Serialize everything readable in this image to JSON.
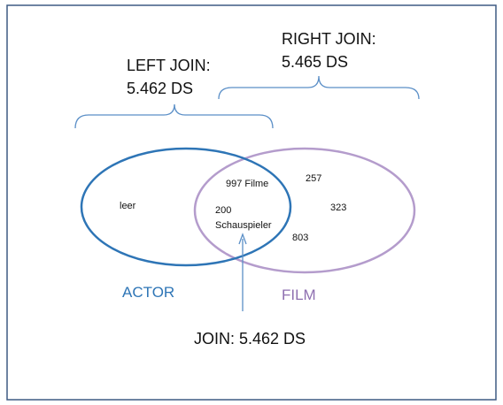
{
  "diagram": {
    "left_join": {
      "label": "LEFT JOIN:",
      "value": "5.462 DS"
    },
    "right_join": {
      "label": "RIGHT JOIN:",
      "value": "5.465 DS"
    },
    "sets": [
      {
        "name": "ACTOR",
        "only": "leer"
      },
      {
        "name": "FILM",
        "only": [
          "257",
          "323",
          "803"
        ]
      }
    ],
    "intersection": [
      "997 Filme",
      "200",
      "Schauspieler"
    ],
    "join": "JOIN: 5.462 DS"
  }
}
